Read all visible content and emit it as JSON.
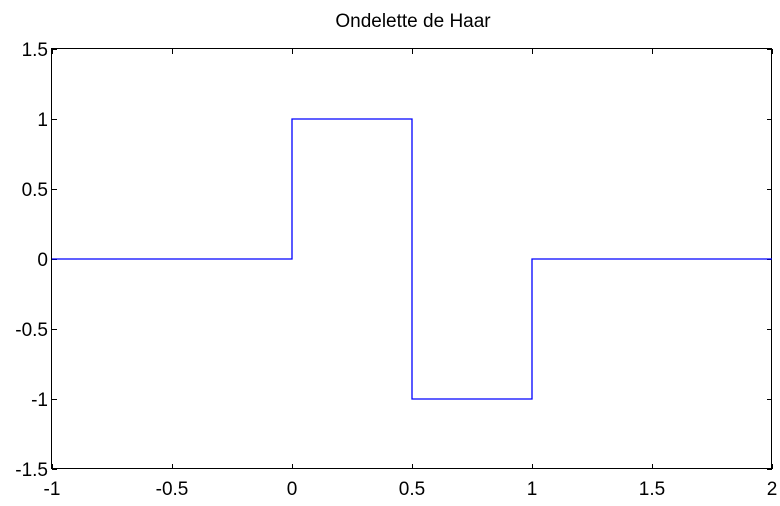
{
  "chart_data": {
    "type": "line",
    "title": "Ondelette de Haar",
    "xlabel": "",
    "ylabel": "",
    "xlim": [
      -1,
      2
    ],
    "ylim": [
      -1.5,
      1.5
    ],
    "xticks": [
      -1,
      -0.5,
      0,
      0.5,
      1,
      1.5,
      2
    ],
    "xtick_labels": [
      "-1",
      "-0.5",
      "0",
      "0.5",
      "1",
      "1.5",
      "2"
    ],
    "yticks": [
      -1.5,
      -1,
      -0.5,
      0,
      0.5,
      1,
      1.5
    ],
    "ytick_labels": [
      "-1.5",
      "-1",
      "-0.5",
      "0",
      "0.5",
      "1",
      "1.5"
    ],
    "grid": false,
    "legend": "none",
    "series": [
      {
        "color": "#0000ff",
        "x": [
          -1,
          0,
          0,
          0.5,
          0.5,
          1,
          1,
          2
        ],
        "y": [
          0,
          0,
          1,
          1,
          -1,
          -1,
          0,
          0
        ]
      }
    ]
  }
}
